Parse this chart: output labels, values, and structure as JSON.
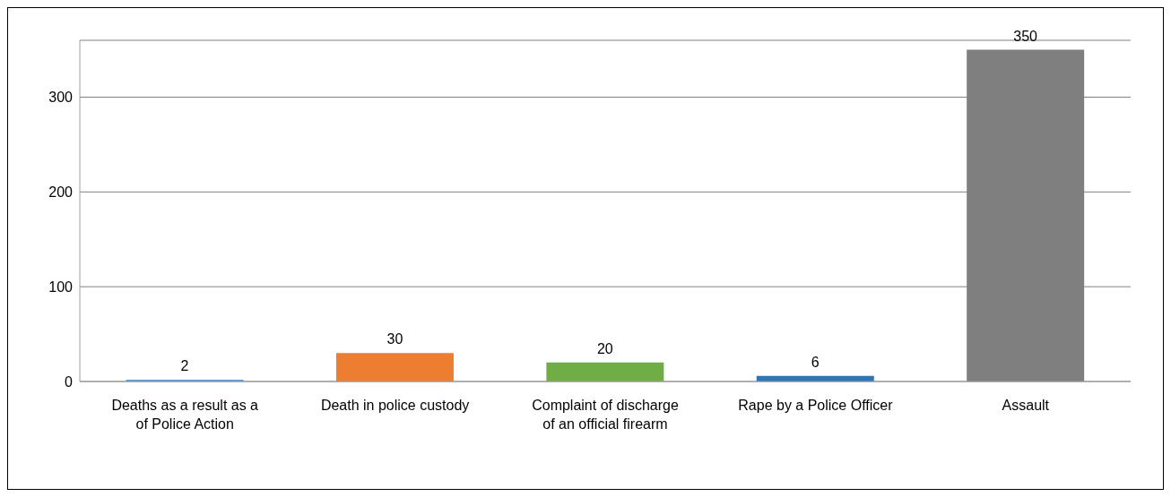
{
  "chart_data": {
    "type": "bar",
    "categories": [
      "Deaths as a result as a of Police Action",
      "Death in police custody",
      "Complaint of discharge of an official firearm",
      "Rape by a Police Officer",
      "Assault"
    ],
    "values": [
      2,
      30,
      20,
      6,
      350
    ],
    "colors": [
      "#5b9bd5",
      "#ed7d31",
      "#70ad47",
      "#2e75b6",
      "#7f7f7f"
    ],
    "ylim": [
      0,
      360
    ],
    "yticks": [
      0,
      100,
      200,
      300
    ],
    "grid": "y",
    "data_labels": true,
    "legend": false
  }
}
